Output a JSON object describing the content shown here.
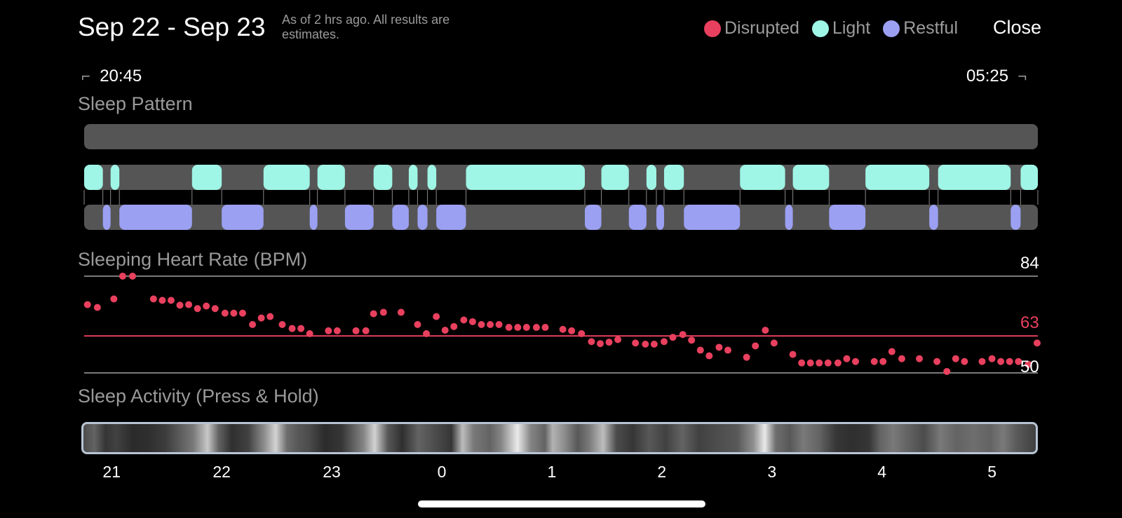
{
  "header": {
    "title": "Sep 22 - Sep 23",
    "subtitle": "As of 2 hrs ago. All results are estimates.",
    "close_label": "Close"
  },
  "legend": [
    {
      "label": "Disrupted",
      "color": "#e8405e"
    },
    {
      "label": "Light",
      "color": "#9ff5e6"
    },
    {
      "label": "Restful",
      "color": "#9ba0f2"
    }
  ],
  "time_range": {
    "start": "20:45",
    "end": "05:25"
  },
  "sections": {
    "sleep_pattern": "Sleep Pattern",
    "heart_rate": "Sleeping Heart Rate (BPM)",
    "activity": "Sleep Activity (Press & Hold)"
  },
  "chart_data": [
    {
      "type": "bar",
      "title": "Sleep Pattern",
      "x_unit": "hour",
      "xlim": [
        20.75,
        29.4167
      ],
      "series": [
        {
          "name": "Disrupted",
          "color": "#e8405e",
          "segments": []
        },
        {
          "name": "Light",
          "color": "#9ff5e6",
          "segments": [
            [
              20.75,
              20.92
            ],
            [
              20.99,
              21.07
            ],
            [
              21.73,
              22.0
            ],
            [
              22.38,
              22.8
            ],
            [
              22.87,
              23.12
            ],
            [
              23.38,
              23.55
            ],
            [
              23.7,
              23.78
            ],
            [
              23.87,
              23.95
            ],
            [
              24.22,
              25.3
            ],
            [
              25.45,
              25.7
            ],
            [
              25.86,
              25.95
            ],
            [
              26.02,
              26.2
            ],
            [
              26.71,
              27.12
            ],
            [
              27.19,
              27.52
            ],
            [
              27.85,
              28.43
            ],
            [
              28.51,
              29.17
            ],
            [
              29.26,
              29.4167
            ]
          ]
        },
        {
          "name": "Restful",
          "color": "#9ba0f2",
          "segments": [
            [
              20.92,
              20.99
            ],
            [
              21.07,
              21.73
            ],
            [
              22.0,
              22.38
            ],
            [
              22.8,
              22.87
            ],
            [
              23.12,
              23.38
            ],
            [
              23.55,
              23.7
            ],
            [
              23.78,
              23.87
            ],
            [
              23.95,
              24.22
            ],
            [
              25.3,
              25.45
            ],
            [
              25.7,
              25.86
            ],
            [
              25.95,
              26.02
            ],
            [
              26.2,
              26.71
            ],
            [
              27.12,
              27.19
            ],
            [
              27.52,
              27.85
            ],
            [
              28.43,
              28.51
            ],
            [
              29.17,
              29.26
            ]
          ]
        }
      ]
    },
    {
      "type": "scatter",
      "title": "Sleeping Heart Rate (BPM)",
      "ylim": [
        50,
        84
      ],
      "reference_lines": [
        {
          "value": 84,
          "color": "#7a7a7a"
        },
        {
          "value": 63,
          "color": "#e8405e"
        },
        {
          "value": 50,
          "color": "#7a7a7a"
        }
      ],
      "series": [
        {
          "color": "#e8405e",
          "points": [
            [
              20.78,
              74
            ],
            [
              20.87,
              73
            ],
            [
              21.02,
              76
            ],
            [
              21.1,
              84
            ],
            [
              21.19,
              84
            ],
            [
              21.38,
              76
            ],
            [
              21.46,
              75.5
            ],
            [
              21.54,
              75.5
            ],
            [
              21.62,
              73.8
            ],
            [
              21.7,
              74
            ],
            [
              21.78,
              72.6
            ],
            [
              21.86,
              73.5
            ],
            [
              21.94,
              72.6
            ],
            [
              22.03,
              71
            ],
            [
              22.11,
              71
            ],
            [
              22.19,
              71
            ],
            [
              22.28,
              67
            ],
            [
              22.36,
              69.3
            ],
            [
              22.44,
              69.8
            ],
            [
              22.55,
              67
            ],
            [
              22.64,
              65.6
            ],
            [
              22.72,
              65.6
            ],
            [
              22.8,
              63.8
            ],
            [
              22.97,
              64.8
            ],
            [
              23.05,
              64.8
            ],
            [
              23.22,
              64.8
            ],
            [
              23.31,
              64.8
            ],
            [
              23.38,
              70.8
            ],
            [
              23.47,
              71.3
            ],
            [
              23.63,
              71.3
            ],
            [
              23.78,
              67
            ],
            [
              23.86,
              63.8
            ],
            [
              23.95,
              69.8
            ],
            [
              24.03,
              65
            ],
            [
              24.11,
              66.3
            ],
            [
              24.2,
              68.6
            ],
            [
              24.28,
              68
            ],
            [
              24.36,
              67
            ],
            [
              24.44,
              67
            ],
            [
              24.52,
              67
            ],
            [
              24.61,
              66
            ],
            [
              24.69,
              66
            ],
            [
              24.77,
              66
            ],
            [
              24.86,
              66
            ],
            [
              24.94,
              66
            ],
            [
              25.1,
              65.3
            ],
            [
              25.18,
              64.8
            ],
            [
              25.27,
              63.8
            ],
            [
              25.36,
              61
            ],
            [
              25.44,
              60.3
            ],
            [
              25.52,
              60.8
            ],
            [
              25.6,
              61.7
            ],
            [
              25.76,
              60.5
            ],
            [
              25.85,
              60.1
            ],
            [
              25.93,
              60.1
            ],
            [
              26.02,
              61
            ],
            [
              26.1,
              62.5
            ],
            [
              26.19,
              63.5
            ],
            [
              26.27,
              61.5
            ],
            [
              26.35,
              58
            ],
            [
              26.43,
              56
            ],
            [
              26.52,
              59
            ],
            [
              26.6,
              58
            ],
            [
              26.77,
              55.5
            ],
            [
              26.85,
              59.5
            ],
            [
              26.94,
              65
            ],
            [
              27.02,
              60.5
            ],
            [
              27.19,
              56.5
            ],
            [
              27.27,
              53.5
            ],
            [
              27.35,
              53.5
            ],
            [
              27.43,
              53.5
            ],
            [
              27.51,
              53.5
            ],
            [
              27.6,
              53.5
            ],
            [
              27.68,
              55
            ],
            [
              27.76,
              54
            ],
            [
              27.93,
              54
            ],
            [
              28.01,
              54
            ],
            [
              28.09,
              57.5
            ],
            [
              28.18,
              55
            ],
            [
              28.34,
              55
            ],
            [
              28.5,
              54
            ],
            [
              28.59,
              50.5
            ],
            [
              28.67,
              55
            ],
            [
              28.75,
              54
            ],
            [
              28.91,
              54
            ],
            [
              29.0,
              55
            ],
            [
              29.08,
              54
            ],
            [
              29.16,
              54
            ],
            [
              29.24,
              54
            ],
            [
              29.33,
              53
            ],
            [
              29.41,
              60.5
            ]
          ]
        }
      ]
    },
    {
      "type": "heatmap",
      "title": "Sleep Activity (Press & Hold)",
      "xlim": [
        20.75,
        29.4167
      ],
      "x_ticks": [
        {
          "label": "21",
          "value": 21
        },
        {
          "label": "22",
          "value": 22
        },
        {
          "label": "23",
          "value": 23
        },
        {
          "label": "0",
          "value": 24
        },
        {
          "label": "1",
          "value": 25
        },
        {
          "label": "2",
          "value": 26
        },
        {
          "label": "3",
          "value": 27
        },
        {
          "label": "4",
          "value": 28
        },
        {
          "label": "5",
          "value": 29
        }
      ],
      "intensity": [
        [
          20.75,
          0.25
        ],
        [
          20.85,
          0.35
        ],
        [
          20.95,
          0.15
        ],
        [
          21.05,
          0.2
        ],
        [
          21.2,
          0.1
        ],
        [
          21.35,
          0.12
        ],
        [
          21.5,
          0.18
        ],
        [
          21.75,
          0.45
        ],
        [
          21.88,
          0.8
        ],
        [
          21.98,
          0.35
        ],
        [
          22.1,
          0.12
        ],
        [
          22.25,
          0.2
        ],
        [
          22.4,
          0.55
        ],
        [
          22.5,
          0.85
        ],
        [
          22.6,
          0.4
        ],
        [
          22.7,
          0.3
        ],
        [
          22.8,
          0.25
        ],
        [
          22.95,
          0.1
        ],
        [
          23.1,
          0.15
        ],
        [
          23.3,
          0.5
        ],
        [
          23.4,
          0.85
        ],
        [
          23.52,
          0.3
        ],
        [
          23.65,
          0.12
        ],
        [
          23.8,
          0.35
        ],
        [
          23.95,
          0.25
        ],
        [
          24.1,
          0.15
        ],
        [
          24.2,
          0.75
        ],
        [
          24.3,
          0.45
        ],
        [
          24.45,
          0.35
        ],
        [
          24.55,
          0.5
        ],
        [
          24.7,
          0.95
        ],
        [
          24.82,
          0.5
        ],
        [
          24.95,
          0.35
        ],
        [
          25.02,
          0.7
        ],
        [
          25.12,
          0.55
        ],
        [
          25.25,
          0.3
        ],
        [
          25.35,
          0.45
        ],
        [
          25.48,
          0.75
        ],
        [
          25.6,
          0.25
        ],
        [
          25.75,
          0.15
        ],
        [
          25.9,
          0.3
        ],
        [
          26.05,
          0.2
        ],
        [
          26.2,
          0.35
        ],
        [
          26.35,
          0.2
        ],
        [
          26.5,
          0.25
        ],
        [
          26.7,
          0.3
        ],
        [
          26.85,
          0.55
        ],
        [
          26.95,
          0.95
        ],
        [
          27.05,
          0.4
        ],
        [
          27.18,
          0.3
        ],
        [
          27.3,
          0.45
        ],
        [
          27.45,
          0.35
        ],
        [
          27.6,
          0.15
        ],
        [
          27.75,
          0.12
        ],
        [
          27.9,
          0.15
        ],
        [
          28.0,
          0.35
        ],
        [
          28.12,
          0.45
        ],
        [
          28.25,
          0.35
        ],
        [
          28.4,
          0.25
        ],
        [
          28.55,
          0.45
        ],
        [
          28.7,
          0.35
        ],
        [
          28.85,
          0.4
        ],
        [
          29.0,
          0.35
        ],
        [
          29.12,
          0.45
        ],
        [
          29.25,
          0.3
        ],
        [
          29.41,
          0.2
        ]
      ]
    }
  ]
}
